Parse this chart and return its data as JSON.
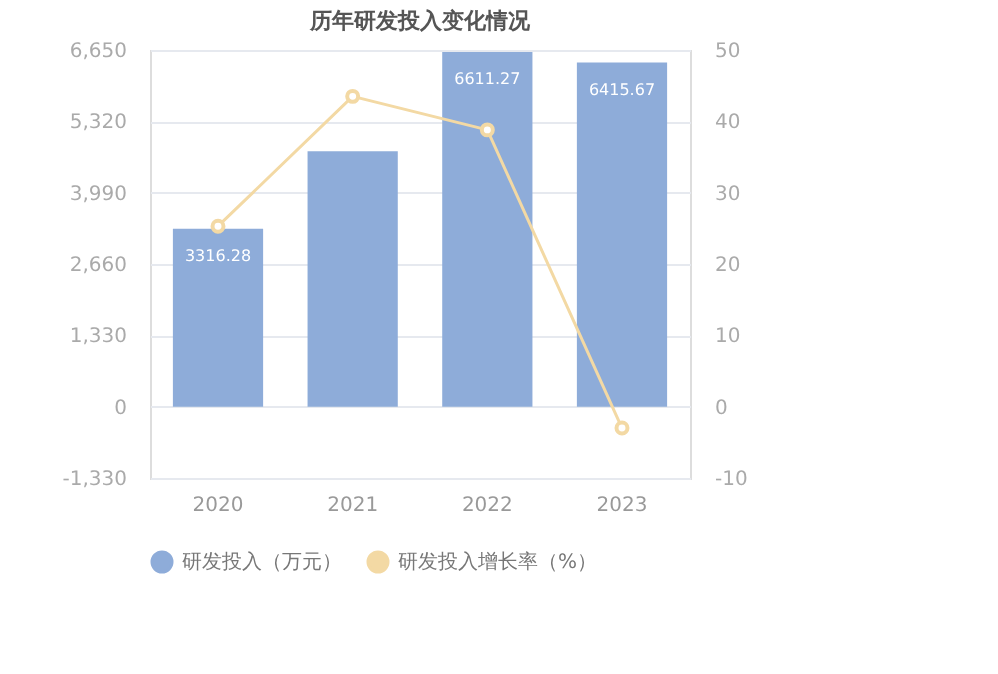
{
  "chart_data": {
    "type": "bar",
    "title": "历年研发投入变化情况",
    "categories": [
      "2020",
      "2021",
      "2022",
      "2023"
    ],
    "series": [
      {
        "name": "研发投入（万元）",
        "color": "#8eacd9",
        "values": [
          3316.28,
          4760,
          6611.27,
          6415.67
        ],
        "value_labels": [
          "3316.28",
          null,
          "6611.27",
          "6415.67"
        ]
      },
      {
        "name": "研发投入增长率（%）",
        "type": "line",
        "axis": "y2",
        "color": "#f3d9a4",
        "values": [
          25.3,
          43.5,
          38.8,
          -3.0
        ],
        "marker": "circle"
      }
    ],
    "ylim": [
      -1330,
      6650
    ],
    "yticks": [
      {
        "value": -1330,
        "label": "-1,330"
      },
      0,
      {
        "value": 1330,
        "label": "1,330"
      },
      {
        "value": 2660,
        "label": "2,660"
      },
      {
        "value": 3990,
        "label": "3,990"
      },
      {
        "value": 5320,
        "label": "5,320"
      },
      {
        "value": 6650,
        "label": "6,650"
      }
    ],
    "y2lim": [
      -10,
      50
    ],
    "y2ticks": [
      -10,
      0,
      10,
      20,
      30,
      40,
      50
    ],
    "grid": "y",
    "legend": "bottom"
  }
}
